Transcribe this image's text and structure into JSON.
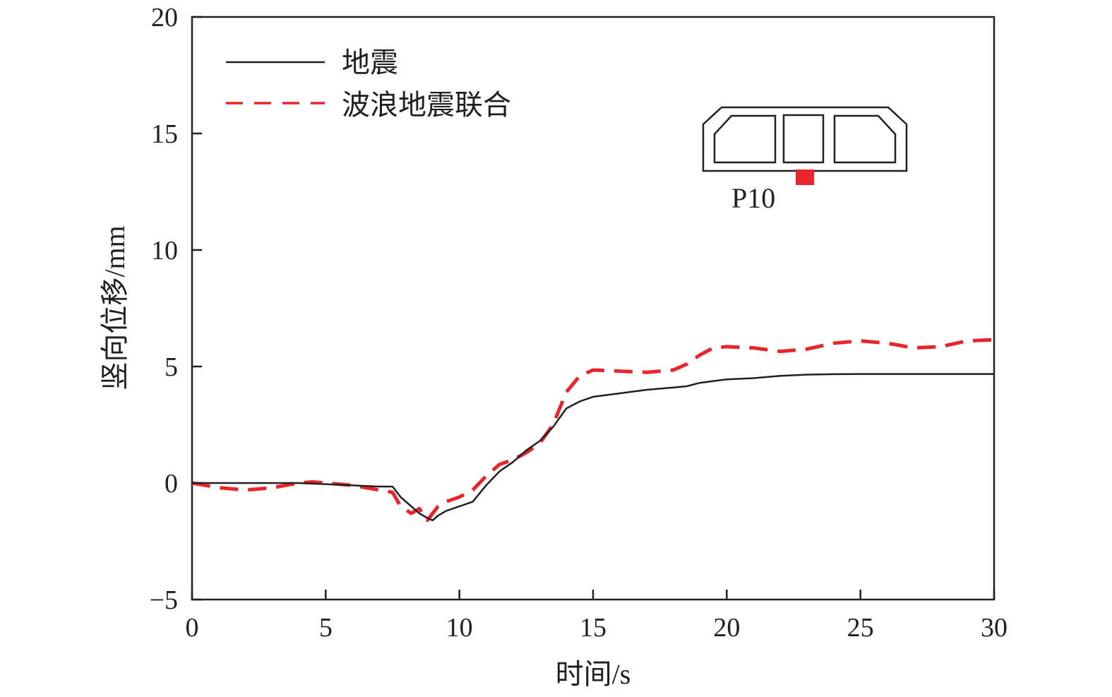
{
  "chart_data": {
    "type": "line",
    "xlabel": "时间/s",
    "ylabel": "竖向位移/mm",
    "xlim": [
      0,
      30
    ],
    "ylim": [
      -5,
      20
    ],
    "xticks": [
      0,
      5,
      10,
      15,
      20,
      25,
      30
    ],
    "yticks": [
      -5,
      0,
      5,
      10,
      15,
      20
    ],
    "ytick_labels": [
      "−5",
      "0",
      "5",
      "10",
      "15",
      "20"
    ],
    "grid": false,
    "legend_position": "top-left",
    "series": [
      {
        "name": "地震",
        "color": "#231f20",
        "style": "solid",
        "x": [
          0,
          1,
          2,
          3,
          4,
          5,
          6,
          7,
          7.5,
          7.8,
          8.0,
          8.2,
          8.5,
          8.8,
          9.0,
          9.2,
          9.5,
          10,
          10.5,
          11,
          11.5,
          12,
          12.5,
          13,
          13.5,
          14,
          14.5,
          15,
          16,
          17,
          18,
          18.5,
          19,
          20,
          21,
          22,
          23,
          24,
          25,
          26,
          27,
          28,
          29,
          30
        ],
        "values": [
          0.0,
          0.0,
          0.0,
          0.0,
          0.0,
          -0.05,
          -0.1,
          -0.15,
          -0.15,
          -0.6,
          -0.8,
          -1.0,
          -1.3,
          -1.5,
          -1.6,
          -1.4,
          -1.2,
          -1.0,
          -0.8,
          -0.1,
          0.5,
          0.9,
          1.4,
          1.8,
          2.4,
          3.2,
          3.5,
          3.7,
          3.85,
          4.0,
          4.1,
          4.15,
          4.3,
          4.45,
          4.5,
          4.6,
          4.65,
          4.67,
          4.68,
          4.68,
          4.68,
          4.68,
          4.68,
          4.68
        ]
      },
      {
        "name": "波浪地震联合",
        "color": "#e8252a",
        "style": "dashed",
        "x": [
          0,
          1,
          2,
          3,
          4,
          4.5,
          5,
          6,
          7,
          7.5,
          7.8,
          8.2,
          8.5,
          8.8,
          9.2,
          9.5,
          10,
          10.5,
          11,
          11.5,
          12,
          12.5,
          13,
          13.5,
          14,
          14.5,
          15,
          16,
          17,
          18,
          18.5,
          19,
          19.5,
          20,
          21,
          22,
          23,
          24,
          25,
          26,
          27,
          28,
          29,
          30
        ],
        "values": [
          0.0,
          -0.2,
          -0.3,
          -0.2,
          0.0,
          0.05,
          0.0,
          -0.1,
          -0.3,
          -0.4,
          -1.0,
          -1.3,
          -1.1,
          -1.6,
          -1.0,
          -0.8,
          -0.6,
          -0.3,
          0.3,
          0.8,
          1.0,
          1.3,
          1.7,
          2.5,
          3.9,
          4.6,
          4.85,
          4.8,
          4.75,
          4.85,
          5.1,
          5.5,
          5.8,
          5.85,
          5.8,
          5.65,
          5.75,
          6.0,
          6.1,
          6.0,
          5.8,
          5.85,
          6.1,
          6.15
        ]
      }
    ],
    "annotations": [
      {
        "text": "P10",
        "marker_color": "#e8252a"
      }
    ]
  }
}
